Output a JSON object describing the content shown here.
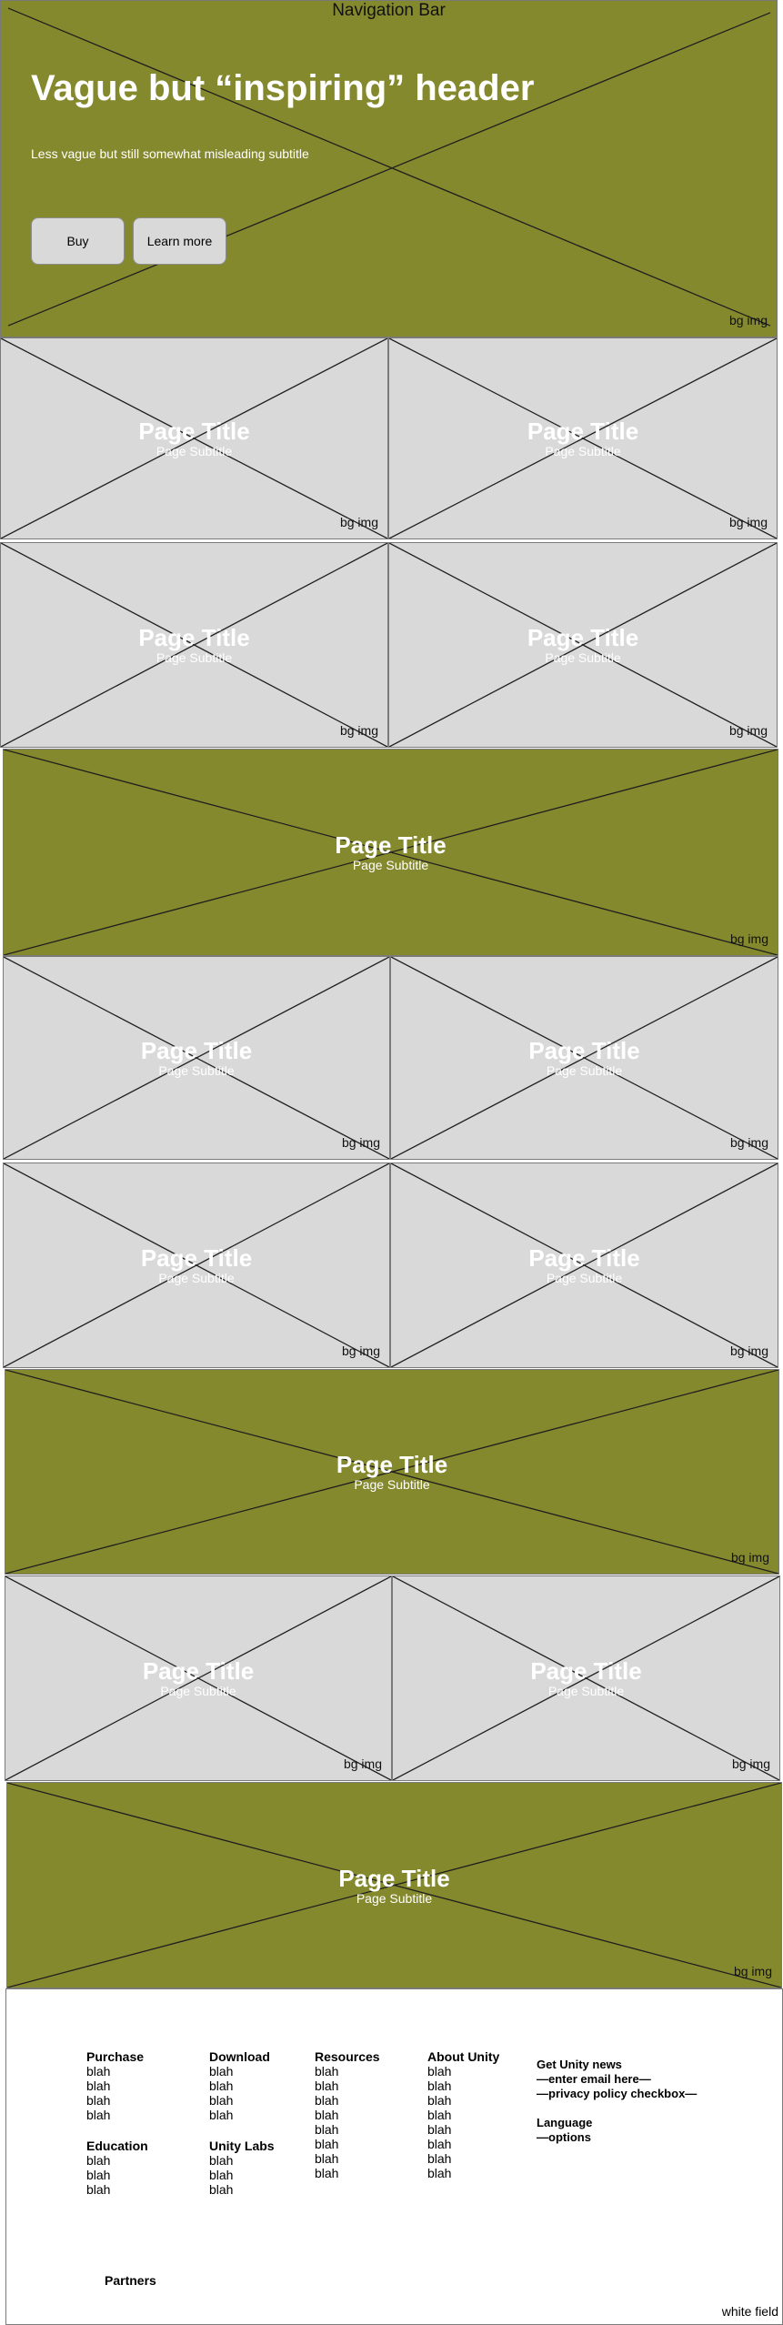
{
  "hero": {
    "nav_title": "Navigation Bar",
    "title": "Vague but “inspiring” header",
    "subtitle": "Less vague but still somewhat misleading subtitle",
    "buy_label": "Buy",
    "learn_more_label": "Learn more",
    "bg_label": "bg img"
  },
  "tile": {
    "title": "Page Title",
    "subtitle": "Page Subtitle",
    "bg_label": "bg img"
  },
  "footer": {
    "columns": [
      {
        "heading": "Purchase",
        "items": [
          "blah",
          "blah",
          "blah",
          "blah"
        ]
      },
      {
        "heading": "Download",
        "items": [
          "blah",
          "blah",
          "blah",
          "blah"
        ]
      },
      {
        "heading": "Resources",
        "items": [
          "blah",
          "blah",
          "blah",
          "blah",
          "blah",
          "blah",
          "blah",
          "blah"
        ]
      },
      {
        "heading": "About Unity",
        "items": [
          "blah",
          "blah",
          "blah",
          "blah",
          "blah",
          "blah",
          "blah",
          "blah"
        ]
      },
      {
        "heading": "Education",
        "items": [
          "blah",
          "blah",
          "blah"
        ]
      },
      {
        "heading": "Unity Labs",
        "items": [
          "blah",
          "blah",
          "blah"
        ]
      }
    ],
    "news_title": "Get Unity news",
    "news_email": "—enter email here—",
    "news_privacy": "—privacy policy checkbox—",
    "language_title": "Language",
    "language_options": "—options",
    "partners": "Partners",
    "white_field": "white field"
  },
  "colors": {
    "olive": "#85892e",
    "grey": "#d9d9d9"
  }
}
